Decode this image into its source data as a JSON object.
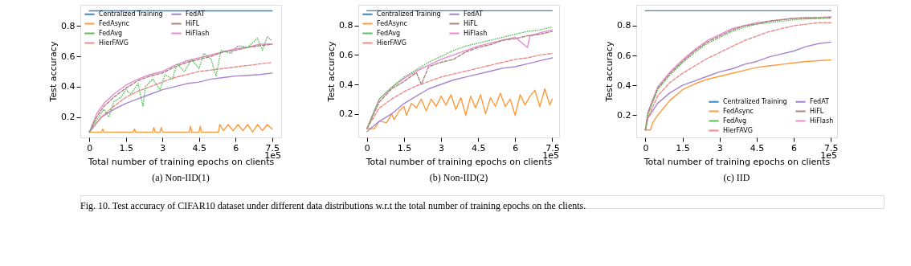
{
  "chart_data": [
    {
      "type": "line",
      "title": "(a) Non-IID(1)",
      "xlabel": "Total number of training epochs on clients",
      "ylabel": "Test accuracy",
      "xlim": [
        -0.37,
        7.87
      ],
      "ylim": [
        0.065,
        0.94
      ],
      "xticks": [
        0,
        1.5,
        3,
        4.5,
        6,
        7.5
      ],
      "yticks": [
        0.2,
        0.4,
        0.6,
        0.8
      ],
      "grid": false,
      "legend": "top left",
      "marker": "none",
      "annotations": [
        "1e5",
        "Fig. 10.    Test accuracy of CIFAR10 dataset under different data distributions w.r.t the total number of training epochs on the clients."
      ],
      "series": [
        {
          "name": "Centralized Training",
          "color": "#3a85c6",
          "line_style": "solid",
          "x": [
            0,
            7.5
          ],
          "values": [
            0.9,
            0.9
          ]
        },
        {
          "name": "FedAsync",
          "color": "#ff9a3c",
          "line_style": "solid",
          "x": [
            0,
            0.5,
            0.55,
            0.6,
            1.8,
            1.85,
            1.9,
            2.6,
            2.65,
            2.7,
            2.9,
            2.95,
            3.0,
            4.1,
            4.15,
            4.2,
            4.5,
            4.55,
            4.6,
            5.3,
            5.35,
            5.5,
            5.7,
            5.9,
            6.1,
            6.3,
            6.5,
            6.7,
            6.9,
            7.1,
            7.3,
            7.5
          ],
          "values": [
            0.1,
            0.1,
            0.12,
            0.1,
            0.1,
            0.12,
            0.1,
            0.1,
            0.13,
            0.1,
            0.1,
            0.13,
            0.1,
            0.1,
            0.14,
            0.1,
            0.1,
            0.14,
            0.1,
            0.1,
            0.15,
            0.11,
            0.15,
            0.11,
            0.15,
            0.11,
            0.15,
            0.1,
            0.15,
            0.11,
            0.15,
            0.12
          ]
        },
        {
          "name": "FedAvg",
          "color": "#5cbf5c",
          "line_style": "dotted",
          "x": [
            0,
            0.3,
            0.6,
            0.8,
            1.0,
            1.3,
            1.5,
            1.7,
            2.0,
            2.2,
            2.3,
            2.6,
            2.9,
            3.1,
            3.4,
            3.6,
            3.9,
            4.2,
            4.5,
            4.7,
            5.0,
            5.2,
            5.4,
            5.8,
            6.1,
            6.5,
            6.9,
            7.1,
            7.3,
            7.5
          ],
          "values": [
            0.1,
            0.18,
            0.25,
            0.2,
            0.3,
            0.33,
            0.38,
            0.35,
            0.42,
            0.27,
            0.4,
            0.45,
            0.38,
            0.48,
            0.45,
            0.55,
            0.5,
            0.58,
            0.52,
            0.62,
            0.58,
            0.47,
            0.64,
            0.62,
            0.67,
            0.66,
            0.72,
            0.64,
            0.73,
            0.7
          ]
        },
        {
          "name": "HierFAVG",
          "color": "#ec8a8a",
          "line_style": "dashed",
          "x": [
            0,
            0.5,
            1,
            1.5,
            2,
            2.5,
            3,
            3.5,
            4,
            4.5,
            5,
            5.5,
            6,
            6.5,
            7,
            7.5
          ],
          "values": [
            0.1,
            0.2,
            0.27,
            0.33,
            0.37,
            0.4,
            0.43,
            0.46,
            0.48,
            0.5,
            0.51,
            0.52,
            0.53,
            0.54,
            0.55,
            0.56
          ]
        },
        {
          "name": "FedAT",
          "color": "#a585cf",
          "line_style": "solid",
          "x": [
            0,
            0.5,
            1,
            1.5,
            2,
            2.5,
            3,
            3.5,
            4,
            4.5,
            5,
            5.5,
            6,
            6.5,
            7,
            7.5
          ],
          "values": [
            0.1,
            0.2,
            0.25,
            0.29,
            0.32,
            0.35,
            0.38,
            0.4,
            0.42,
            0.43,
            0.45,
            0.46,
            0.47,
            0.475,
            0.48,
            0.49
          ]
        },
        {
          "name": "HiFL",
          "color": "#a9857e",
          "line_style": "dashed",
          "x": [
            0,
            0.3,
            0.6,
            1,
            1.5,
            2,
            2.5,
            3,
            3.5,
            4,
            4.5,
            5,
            5.5,
            6,
            6.5,
            7,
            7.5
          ],
          "values": [
            0.1,
            0.2,
            0.27,
            0.33,
            0.39,
            0.44,
            0.47,
            0.49,
            0.53,
            0.56,
            0.58,
            0.6,
            0.63,
            0.64,
            0.66,
            0.67,
            0.68
          ]
        },
        {
          "name": "HiFlash",
          "color": "#e98ad0",
          "line_style": "solid",
          "x": [
            0,
            0.3,
            0.6,
            1,
            1.5,
            2,
            2.5,
            3,
            3.5,
            4,
            4.5,
            5,
            5.5,
            6,
            6.5,
            7,
            7.5
          ],
          "values": [
            0.1,
            0.22,
            0.29,
            0.35,
            0.41,
            0.45,
            0.48,
            0.5,
            0.54,
            0.57,
            0.59,
            0.61,
            0.63,
            0.65,
            0.66,
            0.68,
            0.68
          ]
        }
      ]
    },
    {
      "type": "line",
      "title": "(b) Non-IID(2)",
      "xlabel": "Total number of training epochs on clients",
      "ylabel": "Test accuracy",
      "xlim": [
        -0.35,
        7.78
      ],
      "ylim": [
        0.04,
        0.94
      ],
      "xticks": [
        0,
        1.5,
        3,
        4.5,
        6,
        7.5
      ],
      "yticks": [
        0.2,
        0.4,
        0.6,
        0.8
      ],
      "grid": false,
      "legend": "top left",
      "marker": "none",
      "annotations": [
        "1e5"
      ],
      "series": [
        {
          "name": "Centralized Training",
          "color": "#3a85c6",
          "line_style": "solid",
          "x": [
            0,
            7.5
          ],
          "values": [
            0.9,
            0.9
          ]
        },
        {
          "name": "FedAsync",
          "color": "#ff9a3c",
          "line_style": "solid",
          "x": [
            0,
            0.3,
            0.5,
            0.8,
            1.0,
            1.1,
            1.3,
            1.5,
            1.6,
            1.8,
            2.0,
            2.2,
            2.4,
            2.6,
            2.8,
            3.0,
            3.2,
            3.4,
            3.6,
            3.8,
            4.0,
            4.2,
            4.4,
            4.6,
            4.8,
            5.0,
            5.2,
            5.4,
            5.6,
            5.8,
            6.0,
            6.2,
            6.4,
            6.6,
            6.8,
            7.0,
            7.2,
            7.4,
            7.5
          ],
          "values": [
            0.1,
            0.1,
            0.15,
            0.14,
            0.2,
            0.16,
            0.22,
            0.25,
            0.19,
            0.27,
            0.24,
            0.3,
            0.22,
            0.3,
            0.25,
            0.32,
            0.26,
            0.33,
            0.23,
            0.31,
            0.19,
            0.32,
            0.24,
            0.33,
            0.2,
            0.31,
            0.25,
            0.34,
            0.25,
            0.3,
            0.19,
            0.33,
            0.26,
            0.32,
            0.36,
            0.25,
            0.37,
            0.26,
            0.3
          ]
        },
        {
          "name": "FedAvg",
          "color": "#5cbf5c",
          "line_style": "dotted",
          "x": [
            0,
            0.5,
            1,
            1.5,
            2,
            2.5,
            3,
            3.5,
            4,
            4.5,
            5,
            5.5,
            6,
            6.5,
            7,
            7.5
          ],
          "values": [
            0.1,
            0.3,
            0.38,
            0.45,
            0.5,
            0.55,
            0.59,
            0.63,
            0.66,
            0.68,
            0.7,
            0.72,
            0.74,
            0.76,
            0.77,
            0.79
          ]
        },
        {
          "name": "HierFAVG",
          "color": "#ec8a8a",
          "line_style": "dashed",
          "x": [
            0,
            0.5,
            1,
            1.5,
            2,
            2.5,
            3,
            3.5,
            4,
            4.5,
            5,
            5.5,
            6,
            6.5,
            7,
            7.5
          ],
          "values": [
            0.1,
            0.24,
            0.3,
            0.35,
            0.39,
            0.42,
            0.45,
            0.47,
            0.49,
            0.51,
            0.53,
            0.55,
            0.57,
            0.58,
            0.6,
            0.61
          ]
        },
        {
          "name": "FedAT",
          "color": "#a585cf",
          "line_style": "solid",
          "x": [
            0,
            0.5,
            1,
            1.5,
            2,
            2.5,
            3,
            3.5,
            4,
            4.5,
            5,
            5.5,
            6,
            6.5,
            7,
            7.5
          ],
          "values": [
            0.08,
            0.15,
            0.2,
            0.27,
            0.32,
            0.37,
            0.4,
            0.43,
            0.45,
            0.47,
            0.49,
            0.51,
            0.52,
            0.54,
            0.56,
            0.58
          ]
        },
        {
          "name": "HiFL",
          "color": "#a9857e",
          "line_style": "dashed",
          "x": [
            0,
            0.5,
            1,
            1.5,
            2,
            2.2,
            2.5,
            3,
            3.5,
            4,
            4.5,
            5,
            5.5,
            6,
            6.5,
            7,
            7.5
          ],
          "values": [
            0.1,
            0.28,
            0.37,
            0.42,
            0.48,
            0.4,
            0.52,
            0.55,
            0.57,
            0.62,
            0.65,
            0.67,
            0.7,
            0.71,
            0.73,
            0.74,
            0.76
          ]
        },
        {
          "name": "HiFlash",
          "color": "#e98ad0",
          "line_style": "solid",
          "x": [
            0,
            0.5,
            1,
            1.5,
            2,
            2.5,
            3,
            3.5,
            4,
            4.5,
            5,
            5.5,
            6,
            6.5,
            6.6,
            7,
            7.5
          ],
          "values": [
            0.1,
            0.3,
            0.38,
            0.44,
            0.49,
            0.53,
            0.57,
            0.6,
            0.63,
            0.66,
            0.68,
            0.7,
            0.72,
            0.65,
            0.73,
            0.75,
            0.77
          ]
        }
      ]
    },
    {
      "type": "line",
      "title": "(c) IID",
      "xlabel": "Total number of training epochs on clients",
      "ylabel": "Test accuracy",
      "xlim": [
        -0.37,
        7.75
      ],
      "ylim": [
        0.05,
        0.94
      ],
      "xticks": [
        0,
        1.5,
        3,
        4.5,
        6,
        7.5
      ],
      "yticks": [
        0.2,
        0.4,
        0.6,
        0.8
      ],
      "grid": false,
      "legend": "bottom right",
      "marker": "none",
      "annotations": [
        "1e5"
      ],
      "series": [
        {
          "name": "Centralized Training",
          "color": "#3a85c6",
          "line_style": "solid",
          "x": [
            0,
            7.5
          ],
          "values": [
            0.9,
            0.9
          ]
        },
        {
          "name": "FedAsync",
          "color": "#ff9a3c",
          "line_style": "solid",
          "x": [
            0,
            0.2,
            0.3,
            0.5,
            1,
            1.5,
            2,
            2.5,
            3,
            3.5,
            4,
            4.5,
            5,
            5.5,
            6,
            6.5,
            7,
            7.5
          ],
          "values": [
            0.1,
            0.1,
            0.15,
            0.2,
            0.3,
            0.37,
            0.41,
            0.44,
            0.46,
            0.48,
            0.5,
            0.52,
            0.53,
            0.54,
            0.55,
            0.56,
            0.565,
            0.57
          ]
        },
        {
          "name": "FedAvg",
          "color": "#5cbf5c",
          "line_style": "dotted",
          "x": [
            0,
            0.1,
            0.5,
            1,
            1.5,
            2,
            2.5,
            3,
            3.5,
            4,
            4.5,
            5,
            5.5,
            6,
            6.5,
            7,
            7.5
          ],
          "values": [
            0.1,
            0.2,
            0.37,
            0.47,
            0.55,
            0.62,
            0.68,
            0.72,
            0.76,
            0.79,
            0.81,
            0.82,
            0.83,
            0.84,
            0.845,
            0.85,
            0.85
          ]
        },
        {
          "name": "HierFAVG",
          "color": "#ec8a8a",
          "line_style": "dashed",
          "x": [
            0,
            0.1,
            0.5,
            1,
            1.5,
            2,
            2.5,
            3,
            3.5,
            4,
            4.5,
            5,
            5.5,
            6,
            6.5,
            7,
            7.5
          ],
          "values": [
            0.1,
            0.18,
            0.33,
            0.42,
            0.48,
            0.53,
            0.58,
            0.62,
            0.66,
            0.7,
            0.73,
            0.76,
            0.78,
            0.8,
            0.81,
            0.82,
            0.82
          ]
        },
        {
          "name": "FedAT",
          "color": "#a585cf",
          "line_style": "solid",
          "x": [
            0,
            0.1,
            0.5,
            1,
            1.5,
            2,
            2.5,
            3,
            3.5,
            4,
            4.5,
            5,
            5.5,
            6,
            6.5,
            7,
            7.5
          ],
          "values": [
            0.1,
            0.18,
            0.28,
            0.35,
            0.4,
            0.43,
            0.46,
            0.49,
            0.51,
            0.54,
            0.56,
            0.59,
            0.61,
            0.63,
            0.66,
            0.68,
            0.69
          ]
        },
        {
          "name": "HiFL",
          "color": "#a9857e",
          "line_style": "dashed",
          "x": [
            0,
            0.1,
            0.5,
            1,
            1.5,
            2,
            2.5,
            3,
            3.5,
            4,
            4.5,
            5,
            5.5,
            6,
            6.5,
            7,
            7.5
          ],
          "values": [
            0.1,
            0.21,
            0.38,
            0.48,
            0.56,
            0.63,
            0.69,
            0.73,
            0.77,
            0.8,
            0.81,
            0.83,
            0.84,
            0.85,
            0.85,
            0.85,
            0.855
          ]
        },
        {
          "name": "HiFlash",
          "color": "#e98ad0",
          "line_style": "solid",
          "x": [
            0,
            0.1,
            0.5,
            1,
            1.5,
            2,
            2.5,
            3,
            3.5,
            4,
            4.5,
            5,
            5.5,
            6,
            6.5,
            7,
            7.5
          ],
          "values": [
            0.1,
            0.22,
            0.39,
            0.49,
            0.57,
            0.64,
            0.7,
            0.74,
            0.78,
            0.8,
            0.82,
            0.83,
            0.84,
            0.85,
            0.855,
            0.855,
            0.86
          ]
        }
      ]
    }
  ]
}
